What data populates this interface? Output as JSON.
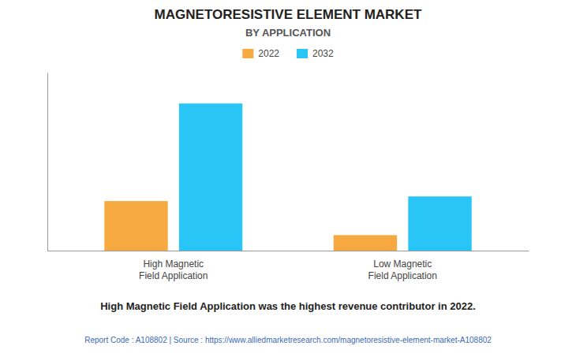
{
  "chart_data": {
    "type": "bar",
    "title": "MAGNETORESISTIVE ELEMENT MARKET",
    "subtitle": "BY APPLICATION",
    "annotations": [
      "High Magnetic Field Application was the highest revenue contributor in 2022.",
      "Report Code : A108802  |  Source : https://www.alliedmarketresearch.com/magnetoresistive-element-market-A108802"
    ],
    "categories": [
      "High Magnetic\nField Application",
      "Low Magnetic\nField Application"
    ],
    "series": [
      {
        "name": "2022",
        "color": "#F5A940",
        "values": [
          3.2,
          1.0
        ]
      },
      {
        "name": "2032",
        "color": "#29C5F6",
        "values": [
          9.5,
          3.5
        ]
      }
    ],
    "ylim": [
      0,
      11.5
    ],
    "yticks": [],
    "grid": false,
    "legend": "top",
    "tick_labels": "x"
  }
}
